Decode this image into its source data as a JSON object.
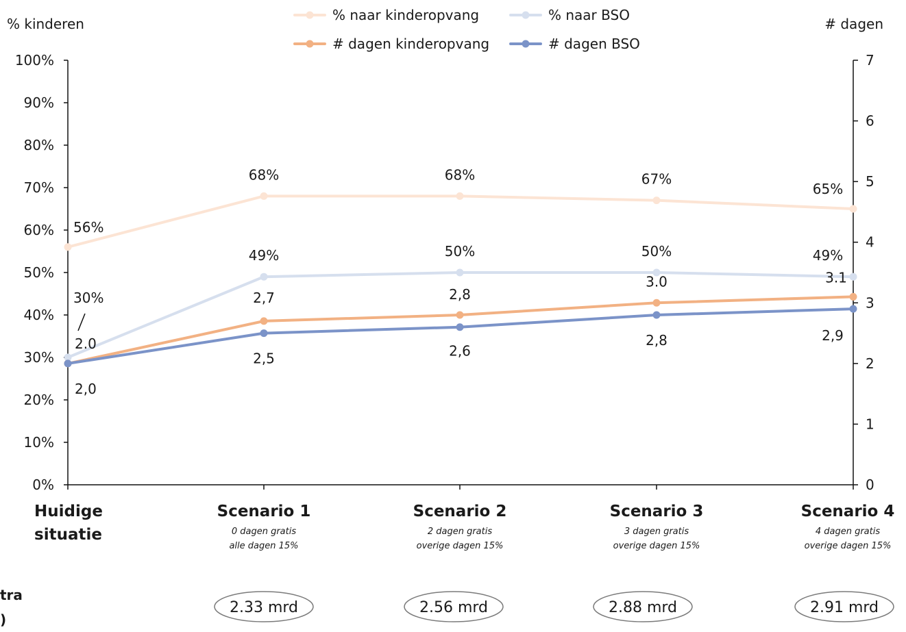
{
  "chart_data": {
    "type": "line",
    "categories": [
      {
        "title": "Huidige situatie",
        "sub1": "",
        "sub2": ""
      },
      {
        "title": "Scenario 1",
        "sub1": "0 dagen gratis",
        "sub2": "alle dagen 15%"
      },
      {
        "title": "Scenario 2",
        "sub1": "2 dagen gratis",
        "sub2": "overige dagen 15%"
      },
      {
        "title": "Scenario 3",
        "sub1": "3 dagen gratis",
        "sub2": "overige dagen 15%"
      },
      {
        "title": "Scenario 4",
        "sub1": "4 dagen gratis",
        "sub2": "overige dagen 15%"
      }
    ],
    "ylabel_left": "% kinderen",
    "ylabel_right": "# dagen",
    "ylim_left": [
      0,
      100
    ],
    "ylim_right": [
      0,
      7
    ],
    "yticks_left": [
      "0%",
      "10%",
      "20%",
      "30%",
      "40%",
      "50%",
      "60%",
      "70%",
      "80%",
      "90%",
      "100%"
    ],
    "yticks_right": [
      "0",
      "1",
      "2",
      "3",
      "4",
      "5",
      "6",
      "7"
    ],
    "series": [
      {
        "name": "% naar kinderopvang",
        "axis": "left",
        "color": "#fce4d4",
        "values": [
          56,
          68,
          68,
          67,
          65
        ],
        "labels": [
          "56%",
          "68%",
          "68%",
          "67%",
          "65%"
        ]
      },
      {
        "name": "% naar BSO",
        "axis": "left",
        "color": "#d6dfee",
        "values": [
          30,
          49,
          50,
          50,
          49
        ],
        "labels": [
          "30%",
          "49%",
          "50%",
          "50%",
          "49%"
        ]
      },
      {
        "name": "# dagen kinderopvang",
        "axis": "right",
        "color": "#f2b183",
        "values": [
          2.0,
          2.7,
          2.8,
          3.0,
          3.1
        ],
        "labels": [
          "2.0",
          "2,7",
          "2,8",
          "3.0",
          "3.1"
        ]
      },
      {
        "name": "# dagen BSO",
        "axis": "right",
        "color": "#7b93c8",
        "values": [
          2.0,
          2.5,
          2.6,
          2.8,
          2.9
        ],
        "labels": [
          "2,0",
          "2,5",
          "2,6",
          "2,8",
          "2,9"
        ]
      }
    ],
    "costs_label_fragments": [
      "tra",
      ")"
    ],
    "costs": [
      "",
      "2.33 mrd",
      "2.56 mrd",
      "2.88 mrd",
      "2.91 mrd"
    ],
    "legend_position": "top-center",
    "grid": false
  }
}
